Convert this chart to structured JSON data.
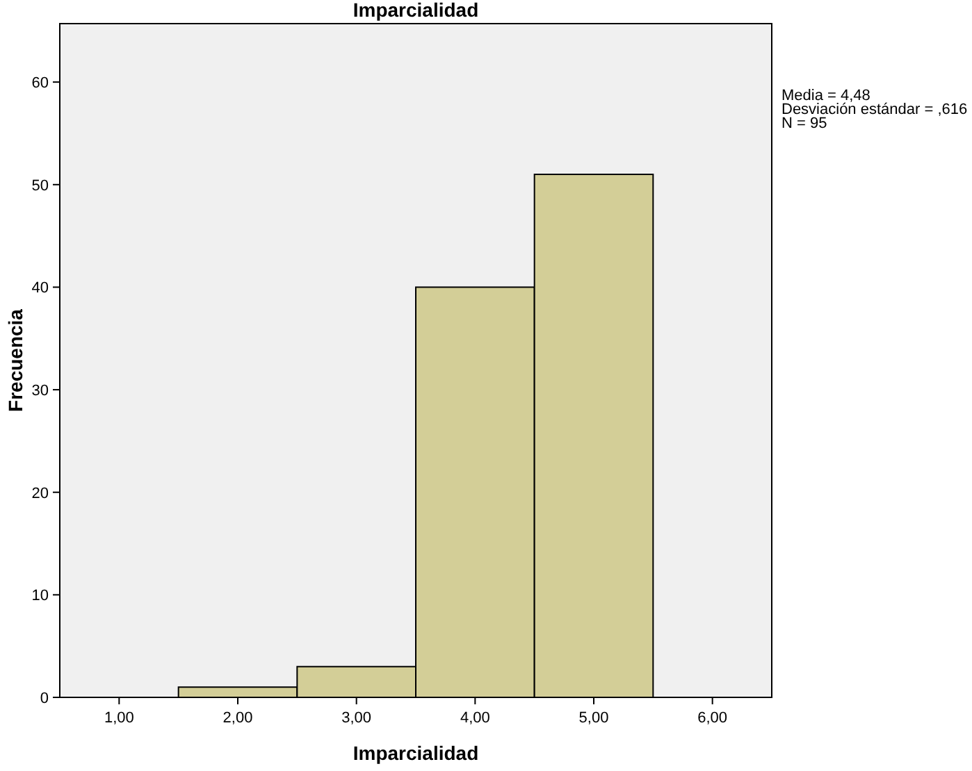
{
  "chart_data": {
    "type": "histogram",
    "title": "Imparcialidad",
    "xlabel": "Imparcialidad",
    "ylabel": "Frecuencia",
    "bins": [
      1.5,
      2.5,
      3.5,
      4.5,
      5.5
    ],
    "values": [
      1,
      3,
      40,
      51
    ],
    "color": "#d3ce97",
    "xlim": [
      0.5,
      6.5
    ],
    "xticks": [
      {
        "value": 1,
        "label": "1,00"
      },
      {
        "value": 2,
        "label": "2,00"
      },
      {
        "value": 3,
        "label": "3,00"
      },
      {
        "value": 4,
        "label": "4,00"
      },
      {
        "value": 5,
        "label": "5,00"
      },
      {
        "value": 6,
        "label": "6,00"
      }
    ],
    "ylim": [
      0,
      65.7
    ],
    "yticks": [
      0,
      10,
      20,
      30,
      40,
      50,
      60
    ],
    "annotations": [
      "Media = 4,48",
      "Desviación estándar = ,616",
      "N = 95"
    ]
  }
}
